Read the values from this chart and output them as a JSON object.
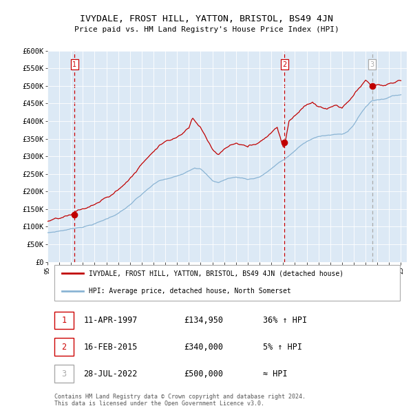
{
  "title": "IVYDALE, FROST HILL, YATTON, BRISTOL, BS49 4JN",
  "subtitle": "Price paid vs. HM Land Registry's House Price Index (HPI)",
  "background_color": "#ffffff",
  "plot_bg_color": "#dce9f5",
  "ylim": [
    0,
    600000
  ],
  "yticks": [
    0,
    50000,
    100000,
    150000,
    200000,
    250000,
    300000,
    350000,
    400000,
    450000,
    500000,
    550000,
    600000
  ],
  "ytick_labels": [
    "£0",
    "£50K",
    "£100K",
    "£150K",
    "£200K",
    "£250K",
    "£300K",
    "£350K",
    "£400K",
    "£450K",
    "£500K",
    "£550K",
    "£600K"
  ],
  "hpi_color": "#8ab4d4",
  "price_color": "#c00000",
  "vline1_color": "#cc0000",
  "vline2_color": "#cc0000",
  "vline3_color": "#aaaaaa",
  "legend_label_price": "IVYDALE, FROST HILL, YATTON, BRISTOL, BS49 4JN (detached house)",
  "legend_label_hpi": "HPI: Average price, detached house, North Somerset",
  "sale_dates": [
    1997.28,
    2015.12,
    2022.56
  ],
  "sale_prices": [
    134950,
    340000,
    500000
  ],
  "sale_labels": [
    "1",
    "2",
    "3"
  ],
  "table_rows": [
    [
      "1",
      "11-APR-1997",
      "£134,950",
      "36% ↑ HPI"
    ],
    [
      "2",
      "16-FEB-2015",
      "£340,000",
      "5% ↑ HPI"
    ],
    [
      "3",
      "28-JUL-2022",
      "£500,000",
      "≈ HPI"
    ]
  ],
  "footer_text": "Contains HM Land Registry data © Crown copyright and database right 2024.\nThis data is licensed under the Open Government Licence v3.0.",
  "xlim_left": 1995.0,
  "xlim_right": 2025.5
}
